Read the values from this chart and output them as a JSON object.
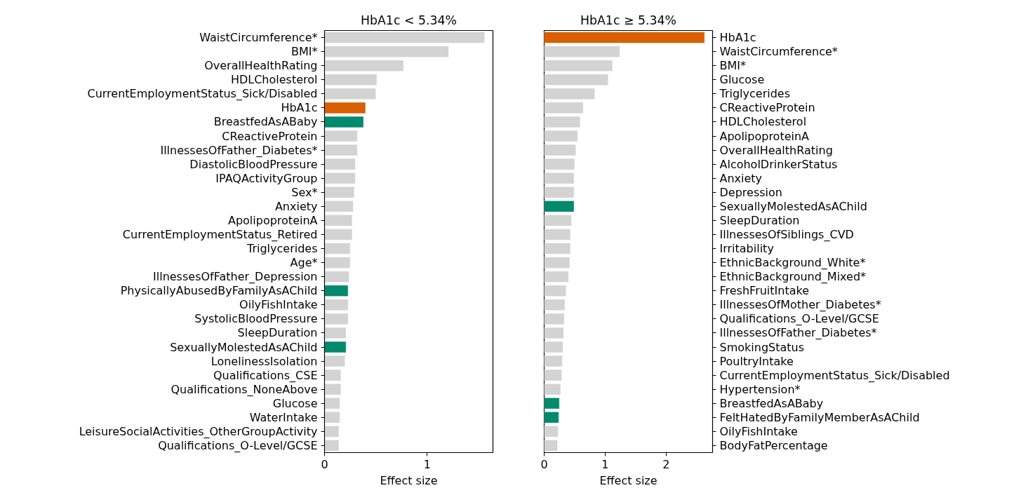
{
  "chart_data": [
    {
      "type": "bar",
      "orientation": "horizontal",
      "title": "HbA1c < 5.34%",
      "xlabel": "Effect size",
      "categories": [
        "WaistCircumference*",
        "BMI*",
        "OverallHealthRating",
        "HDLCholesterol",
        "CurrentEmploymentStatus_Sick/Disabled",
        "HbA1c",
        "BreastfedAsABaby",
        "CReactiveProtein",
        "IllnessesOfFather_Diabetes*",
        "DiastolicBloodPressure",
        "IPAQActivityGroup",
        "Sex*",
        "Anxiety",
        "ApolipoproteinA",
        "CurrentEmploymentStatus_Retired",
        "Triglycerides",
        "Age*",
        "IllnessesOfFather_Depression",
        "PhysicallyAbusedByFamilyAsAChild",
        "OilyFishIntake",
        "SystolicBloodPressure",
        "SleepDuration",
        "SexuallyMolestedAsAChild",
        "LonelinessIsolation",
        "Qualifications_CSE",
        "Qualifications_NoneAbove",
        "Glucose",
        "WaterIntake",
        "LeisureSocialActivities_OtherGroupActivity",
        "Qualifications_O-Level/GCSE"
      ],
      "values": [
        1.56,
        1.21,
        0.77,
        0.51,
        0.5,
        0.4,
        0.38,
        0.32,
        0.32,
        0.3,
        0.3,
        0.29,
        0.28,
        0.27,
        0.27,
        0.25,
        0.25,
        0.24,
        0.23,
        0.23,
        0.23,
        0.21,
        0.21,
        0.2,
        0.16,
        0.16,
        0.15,
        0.15,
        0.14,
        0.14
      ],
      "colors": [
        "#d3d3d3",
        "#d3d3d3",
        "#d3d3d3",
        "#d3d3d3",
        "#d3d3d3",
        "#d95f02",
        "#018a6c",
        "#d3d3d3",
        "#d3d3d3",
        "#d3d3d3",
        "#d3d3d3",
        "#d3d3d3",
        "#d3d3d3",
        "#d3d3d3",
        "#d3d3d3",
        "#d3d3d3",
        "#d3d3d3",
        "#d3d3d3",
        "#018a6c",
        "#d3d3d3",
        "#d3d3d3",
        "#d3d3d3",
        "#018a6c",
        "#d3d3d3",
        "#d3d3d3",
        "#d3d3d3",
        "#d3d3d3",
        "#d3d3d3",
        "#d3d3d3",
        "#d3d3d3"
      ],
      "xlim": [
        0,
        1.64
      ],
      "xticks": [
        0,
        1
      ],
      "grid": false
    },
    {
      "type": "bar",
      "orientation": "horizontal",
      "title": "HbA1c ≥ 5.34%",
      "xlabel": "Effect size",
      "categories": [
        "HbA1c",
        "WaistCircumference*",
        "BMI*",
        "Glucose",
        "Triglycerides",
        "CReactiveProtein",
        "HDLCholesterol",
        "ApolipoproteinA",
        "OverallHealthRating",
        "AlcoholDrinkerStatus",
        "Anxiety",
        "Depression",
        "SexuallyMolestedAsAChild",
        "SleepDuration",
        "IllnessesOfSiblings_CVD",
        "Irritability",
        "EthnicBackground_White*",
        "EthnicBackground_Mixed*",
        "FreshFruitIntake",
        "IllnessesOfMother_Diabetes*",
        "Qualifications_O-Level/GCSE",
        "IllnessesOfFather_Diabetes*",
        "SmokingStatus",
        "PoultryIntake",
        "CurrentEmploymentStatus_Sick/Disabled",
        "Hypertension*",
        "BreastfedAsABaby",
        "FeltHatedByFamilyMemberAsAChild",
        "OilyFishIntake",
        "BodyFatPercentage"
      ],
      "values": [
        2.63,
        1.24,
        1.12,
        1.05,
        0.83,
        0.64,
        0.59,
        0.55,
        0.52,
        0.5,
        0.49,
        0.49,
        0.49,
        0.45,
        0.43,
        0.43,
        0.42,
        0.4,
        0.36,
        0.34,
        0.33,
        0.32,
        0.31,
        0.3,
        0.29,
        0.27,
        0.25,
        0.24,
        0.23,
        0.22
      ],
      "colors": [
        "#d95f02",
        "#d3d3d3",
        "#d3d3d3",
        "#d3d3d3",
        "#d3d3d3",
        "#d3d3d3",
        "#d3d3d3",
        "#d3d3d3",
        "#d3d3d3",
        "#d3d3d3",
        "#d3d3d3",
        "#d3d3d3",
        "#018a6c",
        "#d3d3d3",
        "#d3d3d3",
        "#d3d3d3",
        "#d3d3d3",
        "#d3d3d3",
        "#d3d3d3",
        "#d3d3d3",
        "#d3d3d3",
        "#d3d3d3",
        "#d3d3d3",
        "#d3d3d3",
        "#d3d3d3",
        "#d3d3d3",
        "#018a6c",
        "#018a6c",
        "#d3d3d3",
        "#d3d3d3"
      ],
      "xlim": [
        0,
        2.76
      ],
      "xticks": [
        0,
        1,
        2
      ],
      "grid": false
    }
  ]
}
